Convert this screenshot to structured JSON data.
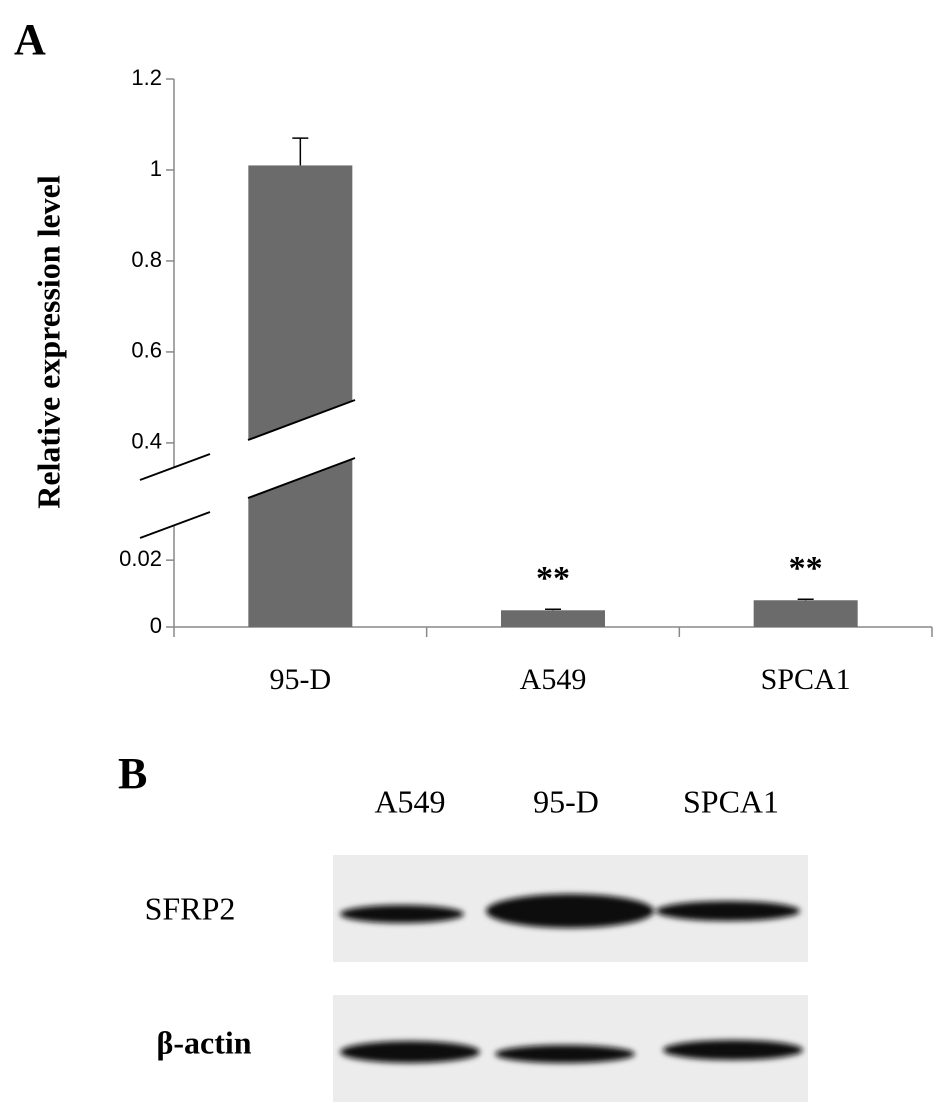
{
  "chart_data": {
    "type": "bar",
    "panel_label": "A",
    "ylabel": "Relative expression level",
    "categories": [
      "95-D",
      "A549",
      "SPCA1"
    ],
    "values": [
      1.01,
      0.005,
      0.008
    ],
    "errors": [
      0.06,
      0.0003,
      0.0003
    ],
    "annotations": [
      null,
      "**",
      "**"
    ],
    "color": "#6b6b6b",
    "ylim": [
      0,
      1.2
    ],
    "ybreak": [
      0.035,
      0.38
    ],
    "yticks": [
      0,
      0.02,
      0.4,
      0.6,
      0.8,
      1,
      1.2
    ]
  },
  "blot": {
    "panel_label": "B",
    "lanes": [
      "A549",
      "95-D",
      "SPCA1"
    ],
    "rows": [
      "SFRP2",
      "β-actin"
    ]
  }
}
